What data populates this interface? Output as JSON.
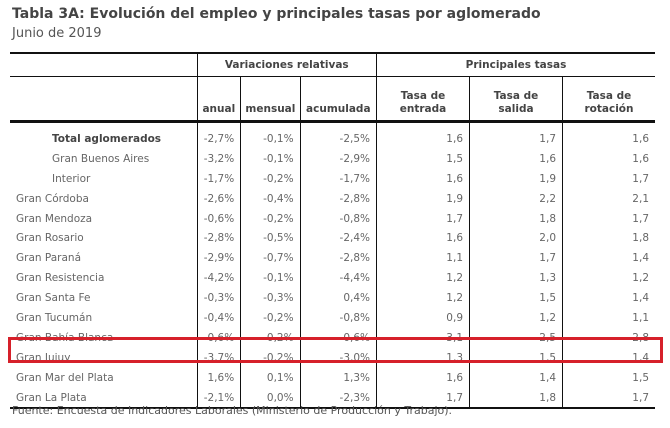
{
  "title": "Tabla 3A: Evolución del empleo y principales tasas por aglomerado",
  "subtitle": "Junio de 2019",
  "groups": {
    "variaciones": "Variaciones relativas",
    "tasas": "Principales tasas"
  },
  "columns": [
    "anual",
    "mensual",
    "acumulada",
    "Tasa de entrada",
    "Tasa de salida",
    "Tasa de rotación"
  ],
  "rows": [
    {
      "name": "Total aglomerados",
      "v": [
        "-2,7%",
        "-0,1%",
        "-2,5%",
        "1,6",
        "1,7",
        "1,6"
      ]
    },
    {
      "name": "Gran Buenos Aires",
      "v": [
        "-3,2%",
        "-0,1%",
        "-2,9%",
        "1,5",
        "1,6",
        "1,6"
      ]
    },
    {
      "name": "Interior",
      "v": [
        "-1,7%",
        "-0,2%",
        "-1,7%",
        "1,6",
        "1,9",
        "1,7"
      ]
    },
    {
      "name": "Gran Córdoba",
      "v": [
        "-2,6%",
        "-0,4%",
        "-2,8%",
        "1,9",
        "2,2",
        "2,1"
      ]
    },
    {
      "name": "Gran Mendoza",
      "v": [
        "-0,6%",
        "-0,2%",
        "-0,8%",
        "1,7",
        "1,8",
        "1,7"
      ]
    },
    {
      "name": "Gran Rosario",
      "v": [
        "-2,8%",
        "-0,5%",
        "-2,4%",
        "1,6",
        "2,0",
        "1,8"
      ]
    },
    {
      "name": "Gran Paraná",
      "v": [
        "-2,9%",
        "-0,7%",
        "-2,8%",
        "1,1",
        "1,7",
        "1,4"
      ]
    },
    {
      "name": "Gran Resistencia",
      "v": [
        "-4,2%",
        "-0,1%",
        "-4,4%",
        "1,2",
        "1,3",
        "1,2"
      ]
    },
    {
      "name": "Gran Santa Fe",
      "v": [
        "-0,3%",
        "-0,3%",
        "0,4%",
        "1,2",
        "1,5",
        "1,4"
      ]
    },
    {
      "name": "Gran Tucumán",
      "v": [
        "-0,4%",
        "-0,2%",
        "-0,8%",
        "0,9",
        "1,2",
        "1,1"
      ]
    },
    {
      "name": "Gran Bahía Blanca",
      "v": [
        "-0,6%",
        "-0,2%",
        "-0,6%",
        "3,1",
        "2,5",
        "2,8"
      ]
    },
    {
      "name": "Gran Jujuy",
      "v": [
        "-3,7%",
        "-0,2%",
        "-3,0%",
        "1,3",
        "1,5",
        "1,4"
      ]
    },
    {
      "name": "Gran Mar del Plata",
      "v": [
        "1,6%",
        "0,1%",
        "1,3%",
        "1,6",
        "1,4",
        "1,5"
      ]
    },
    {
      "name": "Gran La Plata",
      "v": [
        "-2,1%",
        "0,0%",
        "-2,3%",
        "1,7",
        "1,8",
        "1,7"
      ]
    }
  ],
  "highlight_color": "#d6202a",
  "footnote": "Fuente: Encuesta de Indicadores Laborales (Ministerio de Producción y Trabajo)."
}
